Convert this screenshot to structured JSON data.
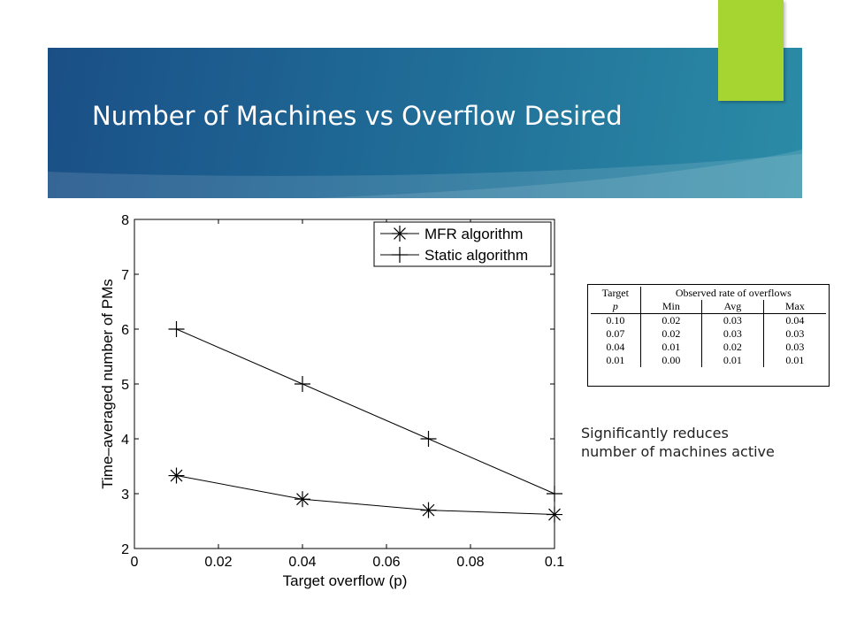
{
  "slide": {
    "title": "Number of Machines vs Overflow Desired",
    "note": "Significantly reduces number of machines active",
    "colors": {
      "band": "#1f6a96",
      "accent": "#a6d431"
    }
  },
  "chart_data": {
    "type": "line",
    "xlabel": "Target overflow (p)",
    "ylabel": "Time–averaged number of PMs",
    "xlim": [
      0,
      0.1
    ],
    "ylim": [
      2,
      8
    ],
    "x_ticks": [
      "0",
      "0.02",
      "0.04",
      "0.06",
      "0.08",
      "0.1"
    ],
    "y_ticks": [
      "2",
      "3",
      "4",
      "5",
      "6",
      "7",
      "8"
    ],
    "grid": false,
    "legend": "top-right",
    "series": [
      {
        "name": "MFR algorithm",
        "marker": "asterisk",
        "x": [
          0.01,
          0.04,
          0.07,
          0.1
        ],
        "y": [
          3.33,
          2.9,
          2.7,
          2.62
        ]
      },
      {
        "name": "Static algorithm",
        "marker": "plus",
        "x": [
          0.01,
          0.04,
          0.07,
          0.1
        ],
        "y": [
          6,
          5,
          4,
          3
        ]
      }
    ]
  },
  "table": {
    "header1": [
      "Target",
      "Observed rate of overflows"
    ],
    "header2": [
      "p",
      "Min",
      "Avg",
      "Max"
    ],
    "rows": [
      [
        "0.10",
        "0.02",
        "0.03",
        "0.04"
      ],
      [
        "0.07",
        "0.02",
        "0.03",
        "0.03"
      ],
      [
        "0.04",
        "0.01",
        "0.02",
        "0.03"
      ],
      [
        "0.01",
        "0.00",
        "0.01",
        "0.01"
      ]
    ]
  }
}
